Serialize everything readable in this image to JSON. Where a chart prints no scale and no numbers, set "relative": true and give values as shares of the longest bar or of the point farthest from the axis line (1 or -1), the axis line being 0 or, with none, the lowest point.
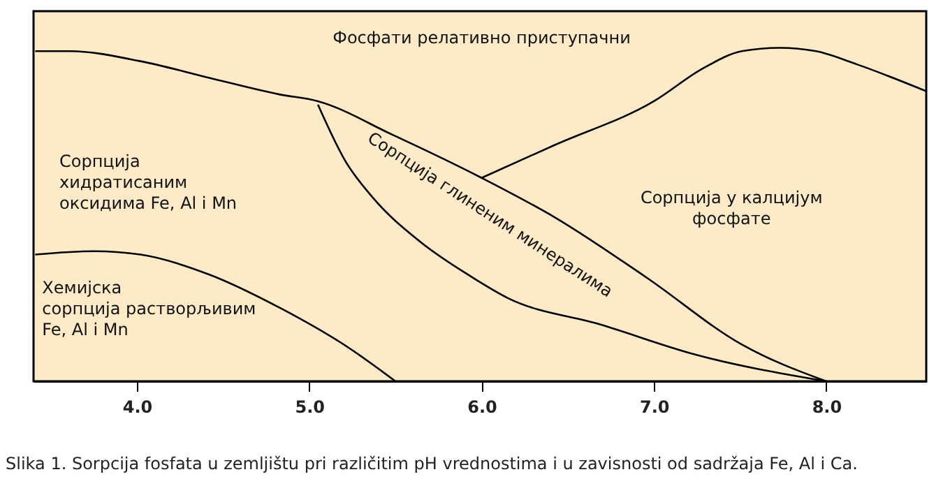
{
  "chart_data": {
    "type": "line",
    "relative": true,
    "xlim": [
      3.4,
      8.58
    ],
    "xticks": [
      {
        "value": 4,
        "label": "4.0"
      },
      {
        "value": 5,
        "label": "5.0"
      },
      {
        "value": 6,
        "label": "6.0"
      },
      {
        "value": 7,
        "label": "7.0"
      },
      {
        "value": 8,
        "label": "8.0"
      }
    ],
    "grid": false,
    "marker": "none",
    "line_style": "solid",
    "series": [
      {
        "color": "#000000",
        "x": [
          3.41,
          3.61,
          4.02,
          4.42,
          4.83,
          5.05,
          5.48,
          6.0,
          6.43,
          6.96,
          7.51,
          8.0
        ],
        "values": [
          0.99,
          0.99,
          0.96,
          0.91,
          0.86,
          0.84,
          0.74,
          0.61,
          0.49,
          0.31,
          0.11,
          0.0
        ]
      },
      {
        "color": "#000000",
        "x": [
          5.05,
          5.21,
          5.37,
          5.64,
          5.92,
          6.15,
          6.69,
          7.24,
          8.0
        ],
        "values": [
          0.83,
          0.66,
          0.55,
          0.42,
          0.32,
          0.25,
          0.17,
          0.08,
          0.0
        ]
      },
      {
        "color": "#000000",
        "x": [
          6.0,
          6.43,
          7.0,
          7.29,
          7.51,
          7.73,
          7.94,
          8.18,
          8.58
        ],
        "values": [
          0.61,
          0.71,
          0.84,
          0.94,
          0.99,
          1.0,
          0.99,
          0.95,
          0.87
        ]
      },
      {
        "color": "#000000",
        "x": [
          3.41,
          3.75,
          4.02,
          4.42,
          4.83,
          5.23,
          5.5
        ],
        "values": [
          0.38,
          0.39,
          0.38,
          0.32,
          0.22,
          0.1,
          0.0
        ]
      }
    ],
    "annotations": [
      "Фосфати релативно приступачни",
      "Сорпција\nхидратисаним\nоксидима Fe, Al i Mn",
      "Сорпција глиненим минералима",
      "Сорпција у калцијум\nфосфате",
      "Хемијска\nсорпција растворљивим\nFe, Al i Mn",
      "Slika 1. Sorpcija fosfata u zemljištu pri različitim pH vrednostima i u zavisnosti od sadržaja Fe, Al i Ca."
    ]
  }
}
